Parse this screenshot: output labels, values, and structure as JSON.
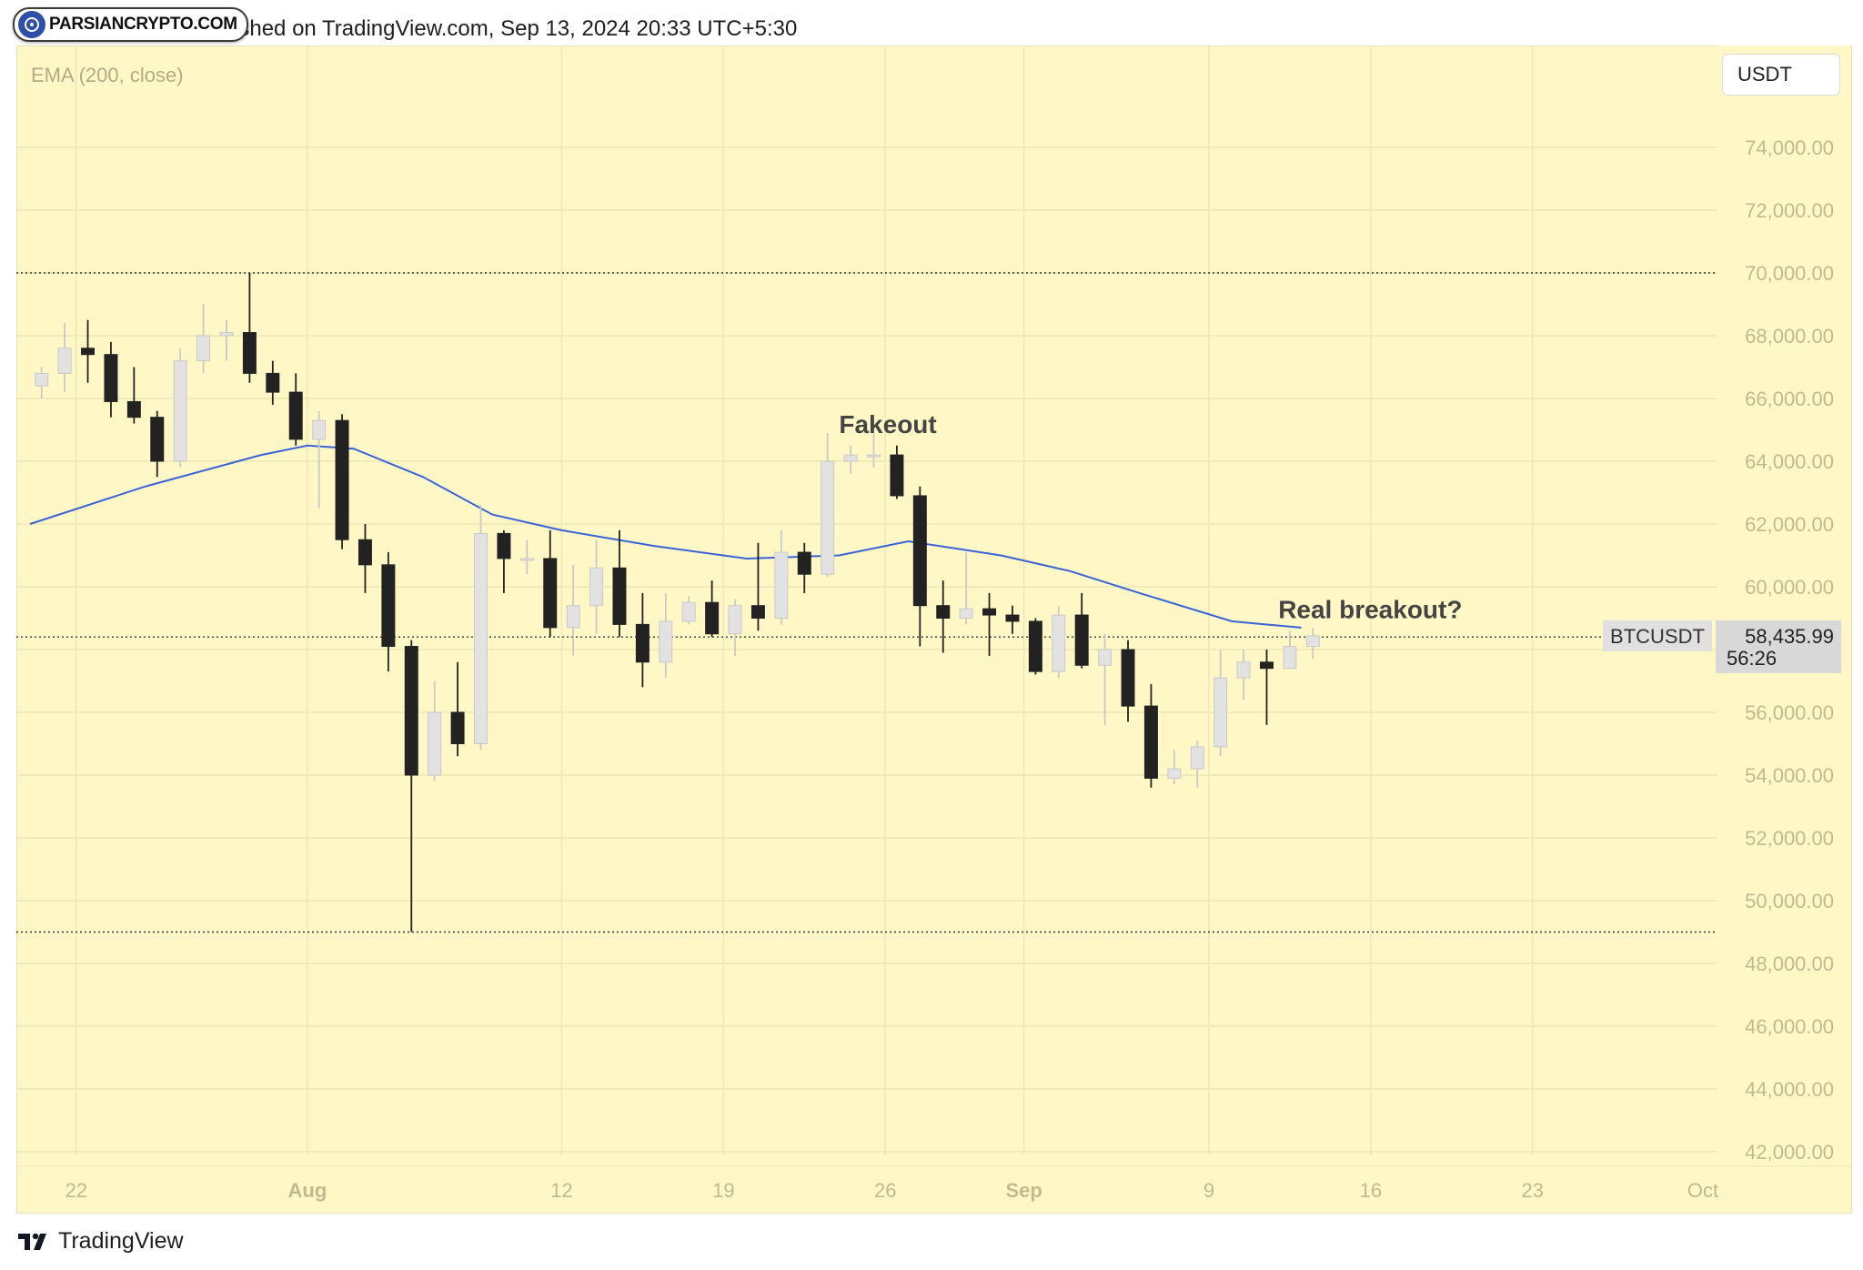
{
  "header": {
    "watermark": "PARSIANCRYPTO.COM",
    "published_text": "yptoVikings/SS published on TradingView.com, Sep 13, 2024 20:33 UTC+5:30"
  },
  "footer": {
    "brand": "TradingView"
  },
  "chart_data": {
    "type": "candlestick",
    "symbol": "BTCUSDT",
    "currency": "USDT",
    "indicator_label": "EMA (200, close)",
    "last_price_label": "58,435.99",
    "countdown_label": "56:26",
    "y_ticks": [
      "74,000.00",
      "72,000.00",
      "70,000.00",
      "68,000.00",
      "66,000.00",
      "64,000.00",
      "62,000.00",
      "60,000.00",
      "58,000.00",
      "56,000.00",
      "54,000.00",
      "52,000.00",
      "50,000.00",
      "48,000.00",
      "46,000.00",
      "44,000.00",
      "42,000.00"
    ],
    "ylim": [
      41000,
      76500
    ],
    "x_ticks": [
      {
        "label": "22",
        "date": "2024-07-22",
        "bold": false
      },
      {
        "label": "Aug",
        "date": "2024-08-01",
        "bold": true
      },
      {
        "label": "12",
        "date": "2024-08-12",
        "bold": false
      },
      {
        "label": "19",
        "date": "2024-08-19",
        "bold": false
      },
      {
        "label": "26",
        "date": "2024-08-26",
        "bold": false
      },
      {
        "label": "Sep",
        "date": "2024-09-01",
        "bold": true
      },
      {
        "label": "9",
        "date": "2024-09-09",
        "bold": false
      },
      {
        "label": "16",
        "date": "2024-09-16",
        "bold": false
      },
      {
        "label": "23",
        "date": "2024-09-23",
        "bold": false
      },
      {
        "label": "Oct",
        "date": "2024-10-01",
        "bold": false
      }
    ],
    "xlim": [
      "2024-07-20",
      "2024-10-01"
    ],
    "horizontal_levels": [
      70000,
      58400,
      49000
    ],
    "annotations": [
      {
        "text": "Fakeout",
        "date": "2024-08-24",
        "price": 64900
      },
      {
        "text": "Real breakout?",
        "date": "2024-09-12",
        "price": 59000
      }
    ],
    "ema": [
      {
        "date": "2024-07-20",
        "value": 62000
      },
      {
        "date": "2024-07-25",
        "value": 63200
      },
      {
        "date": "2024-07-30",
        "value": 64200
      },
      {
        "date": "2024-08-01",
        "value": 64500
      },
      {
        "date": "2024-08-03",
        "value": 64400
      },
      {
        "date": "2024-08-06",
        "value": 63500
      },
      {
        "date": "2024-08-09",
        "value": 62300
      },
      {
        "date": "2024-08-12",
        "value": 61800
      },
      {
        "date": "2024-08-16",
        "value": 61300
      },
      {
        "date": "2024-08-20",
        "value": 60900
      },
      {
        "date": "2024-08-24",
        "value": 61000
      },
      {
        "date": "2024-08-27",
        "value": 61450
      },
      {
        "date": "2024-08-31",
        "value": 61000
      },
      {
        "date": "2024-09-03",
        "value": 60500
      },
      {
        "date": "2024-09-06",
        "value": 59800
      },
      {
        "date": "2024-09-10",
        "value": 58900
      },
      {
        "date": "2024-09-13",
        "value": 58700
      }
    ],
    "ohlc": [
      {
        "date": "2024-07-20",
        "o": 66400,
        "h": 67000,
        "l": 66000,
        "c": 66800
      },
      {
        "date": "2024-07-21",
        "o": 66800,
        "h": 68400,
        "l": 66200,
        "c": 67600
      },
      {
        "date": "2024-07-22",
        "o": 67600,
        "h": 68500,
        "l": 66500,
        "c": 67400
      },
      {
        "date": "2024-07-23",
        "o": 67400,
        "h": 67800,
        "l": 65400,
        "c": 65900
      },
      {
        "date": "2024-07-24",
        "o": 65900,
        "h": 67000,
        "l": 65200,
        "c": 65400
      },
      {
        "date": "2024-07-25",
        "o": 65400,
        "h": 65600,
        "l": 63500,
        "c": 64000
      },
      {
        "date": "2024-07-26",
        "o": 64000,
        "h": 67600,
        "l": 63800,
        "c": 67200
      },
      {
        "date": "2024-07-27",
        "o": 67200,
        "h": 69000,
        "l": 66800,
        "c": 68000
      },
      {
        "date": "2024-07-28",
        "o": 68000,
        "h": 68500,
        "l": 67200,
        "c": 68100
      },
      {
        "date": "2024-07-29",
        "o": 68100,
        "h": 70000,
        "l": 66500,
        "c": 66800
      },
      {
        "date": "2024-07-30",
        "o": 66800,
        "h": 67200,
        "l": 65800,
        "c": 66200
      },
      {
        "date": "2024-07-31",
        "o": 66200,
        "h": 66800,
        "l": 64500,
        "c": 64700
      },
      {
        "date": "2024-08-01",
        "o": 64700,
        "h": 65600,
        "l": 62500,
        "c": 65300
      },
      {
        "date": "2024-08-02",
        "o": 65300,
        "h": 65500,
        "l": 61200,
        "c": 61500
      },
      {
        "date": "2024-08-03",
        "o": 61500,
        "h": 62000,
        "l": 59800,
        "c": 60700
      },
      {
        "date": "2024-08-04",
        "o": 60700,
        "h": 61100,
        "l": 57300,
        "c": 58100
      },
      {
        "date": "2024-08-05",
        "o": 58100,
        "h": 58300,
        "l": 49000,
        "c": 54000
      },
      {
        "date": "2024-08-06",
        "o": 54000,
        "h": 57000,
        "l": 53800,
        "c": 56000
      },
      {
        "date": "2024-08-07",
        "o": 56000,
        "h": 57600,
        "l": 54600,
        "c": 55000
      },
      {
        "date": "2024-08-08",
        "o": 55000,
        "h": 62600,
        "l": 54800,
        "c": 61700
      },
      {
        "date": "2024-08-09",
        "o": 61700,
        "h": 61800,
        "l": 59800,
        "c": 60900
      },
      {
        "date": "2024-08-10",
        "o": 60900,
        "h": 61500,
        "l": 60400,
        "c": 60900
      },
      {
        "date": "2024-08-11",
        "o": 60900,
        "h": 61800,
        "l": 58400,
        "c": 58700
      },
      {
        "date": "2024-08-12",
        "o": 58700,
        "h": 60700,
        "l": 57800,
        "c": 59400
      },
      {
        "date": "2024-08-13",
        "o": 59400,
        "h": 61500,
        "l": 58500,
        "c": 60600
      },
      {
        "date": "2024-08-14",
        "o": 60600,
        "h": 61800,
        "l": 58400,
        "c": 58800
      },
      {
        "date": "2024-08-15",
        "o": 58800,
        "h": 59800,
        "l": 56800,
        "c": 57600
      },
      {
        "date": "2024-08-16",
        "o": 57600,
        "h": 59800,
        "l": 57100,
        "c": 58900
      },
      {
        "date": "2024-08-17",
        "o": 58900,
        "h": 59700,
        "l": 58800,
        "c": 59500
      },
      {
        "date": "2024-08-18",
        "o": 59500,
        "h": 60200,
        "l": 58400,
        "c": 58500
      },
      {
        "date": "2024-08-19",
        "o": 58500,
        "h": 59600,
        "l": 57800,
        "c": 59400
      },
      {
        "date": "2024-08-20",
        "o": 59400,
        "h": 61400,
        "l": 58600,
        "c": 59000
      },
      {
        "date": "2024-08-21",
        "o": 59000,
        "h": 61800,
        "l": 58800,
        "c": 61100
      },
      {
        "date": "2024-08-22",
        "o": 61100,
        "h": 61400,
        "l": 59800,
        "c": 60400
      },
      {
        "date": "2024-08-23",
        "o": 60400,
        "h": 64900,
        "l": 60300,
        "c": 64000
      },
      {
        "date": "2024-08-24",
        "o": 64000,
        "h": 64500,
        "l": 63600,
        "c": 64200
      },
      {
        "date": "2024-08-25",
        "o": 64200,
        "h": 64900,
        "l": 63800,
        "c": 64200
      },
      {
        "date": "2024-08-26",
        "o": 64200,
        "h": 64500,
        "l": 62800,
        "c": 62900
      },
      {
        "date": "2024-08-27",
        "o": 62900,
        "h": 63200,
        "l": 58100,
        "c": 59400
      },
      {
        "date": "2024-08-28",
        "o": 59400,
        "h": 60200,
        "l": 57900,
        "c": 59000
      },
      {
        "date": "2024-08-29",
        "o": 59000,
        "h": 61100,
        "l": 58800,
        "c": 59300
      },
      {
        "date": "2024-08-30",
        "o": 59300,
        "h": 59800,
        "l": 57800,
        "c": 59100
      },
      {
        "date": "2024-08-31",
        "o": 59100,
        "h": 59400,
        "l": 58500,
        "c": 58900
      },
      {
        "date": "2024-09-01",
        "o": 58900,
        "h": 59000,
        "l": 57200,
        "c": 57300
      },
      {
        "date": "2024-09-02",
        "o": 57300,
        "h": 59400,
        "l": 57100,
        "c": 59100
      },
      {
        "date": "2024-09-03",
        "o": 59100,
        "h": 59800,
        "l": 57400,
        "c": 57500
      },
      {
        "date": "2024-09-04",
        "o": 57500,
        "h": 58500,
        "l": 55600,
        "c": 58000
      },
      {
        "date": "2024-09-05",
        "o": 58000,
        "h": 58300,
        "l": 55700,
        "c": 56200
      },
      {
        "date": "2024-09-06",
        "o": 56200,
        "h": 56900,
        "l": 53600,
        "c": 53900
      },
      {
        "date": "2024-09-07",
        "o": 53900,
        "h": 54800,
        "l": 53700,
        "c": 54200
      },
      {
        "date": "2024-09-08",
        "o": 54200,
        "h": 55100,
        "l": 53600,
        "c": 54900
      },
      {
        "date": "2024-09-09",
        "o": 54900,
        "h": 58000,
        "l": 54600,
        "c": 57100
      },
      {
        "date": "2024-09-10",
        "o": 57100,
        "h": 58000,
        "l": 56400,
        "c": 57600
      },
      {
        "date": "2024-09-11",
        "o": 57600,
        "h": 58000,
        "l": 55600,
        "c": 57400
      },
      {
        "date": "2024-09-12",
        "o": 57400,
        "h": 58600,
        "l": 57400,
        "c": 58100
      },
      {
        "date": "2024-09-13",
        "o": 58100,
        "h": 58700,
        "l": 57700,
        "c": 58435.99
      }
    ]
  }
}
